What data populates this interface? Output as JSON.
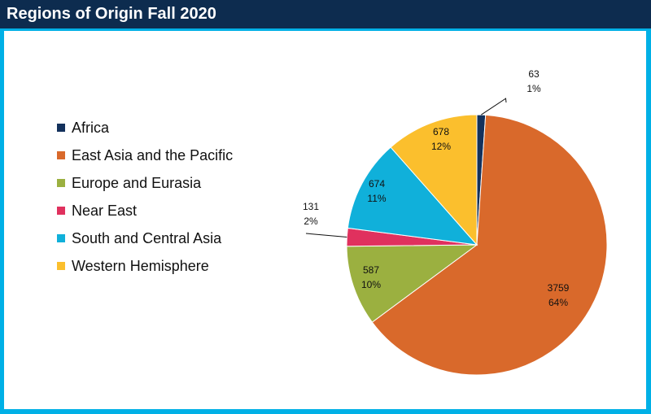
{
  "header": {
    "title": "Regions of Origin Fall 2020"
  },
  "colors": {
    "title_bar": "#0d2c4f",
    "frame": "#00b0e6",
    "background": "#ffffff"
  },
  "chart_data": {
    "type": "pie",
    "title": "Regions of Origin Fall 2020",
    "legend_position": "left",
    "slices": [
      {
        "name": "Africa",
        "value": 63,
        "percent": "1%",
        "color": "#13315c"
      },
      {
        "name": "East Asia and the Pacific",
        "value": 3759,
        "percent": "64%",
        "color": "#d9692b"
      },
      {
        "name": "Europe and Eurasia",
        "value": 587,
        "percent": "10%",
        "color": "#9bb040"
      },
      {
        "name": "Near East",
        "value": 131,
        "percent": "2%",
        "color": "#e0315e"
      },
      {
        "name": "South and Central Asia",
        "value": 674,
        "percent": "11%",
        "color": "#10b0da"
      },
      {
        "name": "Western Hemisphere",
        "value": 678,
        "percent": "12%",
        "color": "#fbbf2d"
      }
    ]
  }
}
